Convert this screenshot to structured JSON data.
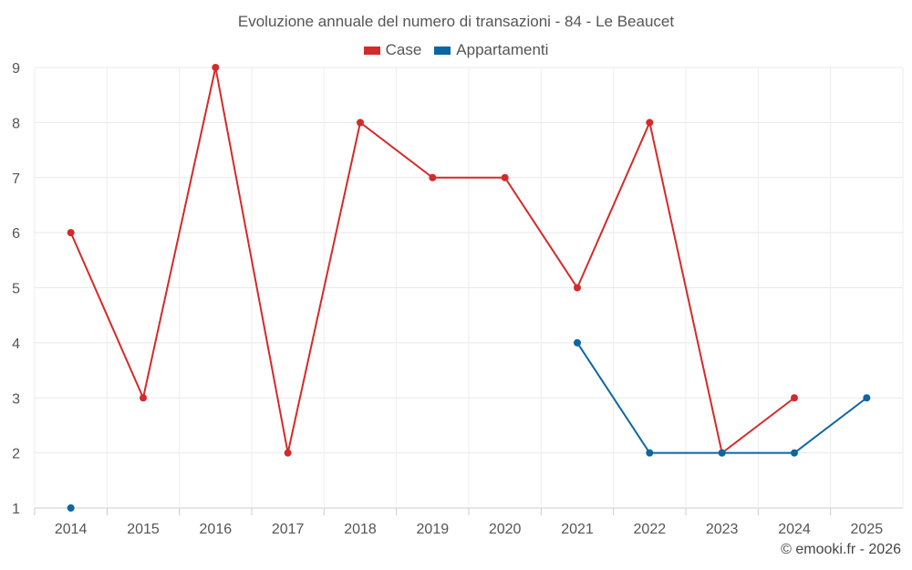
{
  "chart_data": {
    "type": "line",
    "title": "Evoluzione annuale del numero di transazioni - 84 - Le Beaucet",
    "categories": [
      "2014",
      "2015",
      "2016",
      "2017",
      "2018",
      "2019",
      "2020",
      "2021",
      "2022",
      "2023",
      "2024",
      "2025"
    ],
    "series": [
      {
        "name": "Case",
        "color": "#d42a2a",
        "values": [
          6,
          3,
          9,
          2,
          8,
          7,
          7,
          5,
          8,
          2,
          3,
          null
        ]
      },
      {
        "name": "Appartamenti",
        "color": "#0b66a4",
        "values": [
          1,
          null,
          null,
          null,
          null,
          null,
          null,
          4,
          2,
          2,
          2,
          3
        ]
      }
    ],
    "ylim": [
      1,
      9
    ],
    "yticks": [
      1,
      2,
      3,
      4,
      5,
      6,
      7,
      8,
      9
    ],
    "grid": true,
    "legend": "top-center",
    "xlabel": "",
    "ylabel": ""
  },
  "credit": "© emooki.fr - 2026"
}
